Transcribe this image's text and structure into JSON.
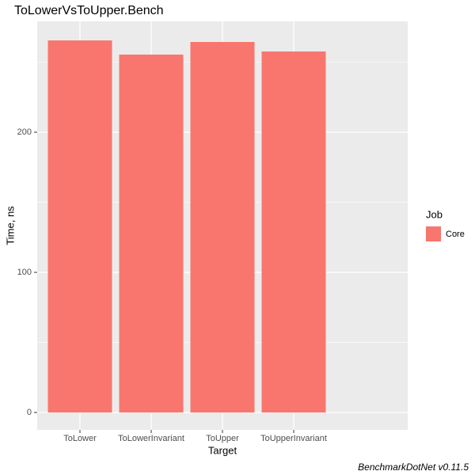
{
  "chart_data": {
    "type": "bar",
    "title": "ToLowerVsToUpper.Bench",
    "x_label": "Target",
    "y_label": "Time, ns",
    "categories": [
      "ToLower",
      "ToLowerInvariant",
      "ToUpper",
      "ToUpperInvariant"
    ],
    "series": [
      {
        "name": "Core",
        "color": "#F8766D",
        "values": [
          265.5,
          255.4,
          264.4,
          257.6
        ]
      }
    ],
    "legend_title": "Job",
    "legend": "right",
    "ylim": [
      -12.4,
      279.1
    ],
    "yticks": [
      0,
      100,
      200
    ],
    "y_minor_gridlines": [
      50,
      150,
      250
    ],
    "grid": true,
    "caption": "BenchmarkDotNet v0.11.5"
  }
}
